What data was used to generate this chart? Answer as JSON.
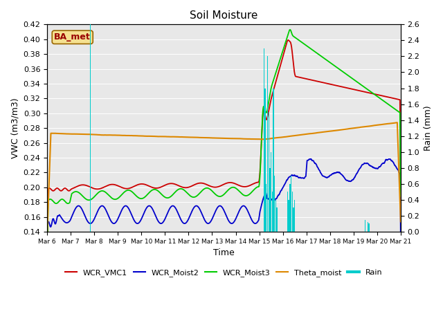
{
  "title": "Soil Moisture",
  "ylabel_left": "VWC (m3/m3)",
  "ylabel_right": "Rain (mm)",
  "xlabel": "Time",
  "annotation": "BA_met",
  "ylim_left": [
    0.14,
    0.42
  ],
  "ylim_right": [
    0.0,
    2.6
  ],
  "xlim": [
    0,
    15
  ],
  "colors": {
    "WCR_VMC1": "#cc0000",
    "WCR_Moist2": "#0000cc",
    "WCR_Moist3": "#00cc00",
    "Theta_moist": "#dd8800",
    "Rain": "#00cccc"
  },
  "bg_color": "#e8e8e8",
  "grid_color": "#ffffff",
  "xtick_days": [
    0,
    1,
    2,
    3,
    4,
    5,
    6,
    7,
    8,
    9,
    10,
    11,
    12,
    13,
    14,
    15
  ],
  "xtick_labels": [
    "Mar 6",
    "Mar 7",
    "Mar 8",
    "Mar 9",
    "Mar 10",
    "Mar 11",
    "Mar 12",
    "Mar 13",
    "Mar 14",
    "Mar 15",
    "Mar 16",
    "Mar 17",
    "Mar 18",
    "Mar 19",
    "Mar 20",
    "Mar 21"
  ]
}
